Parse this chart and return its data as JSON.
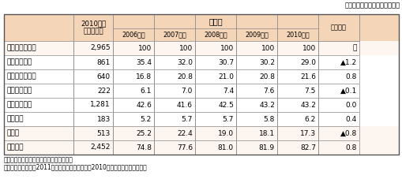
{
  "title_unit": "（単位：社、％、％ポイント）",
  "header1": [
    "",
    "2010年度\n集計企業数",
    "構成比",
    "",
    "",
    "",
    "",
    ""
  ],
  "header2": [
    "",
    "",
    "2006年度",
    "2007年度",
    "2008年度",
    "2009年度",
    "2010年度",
    "前年度差"
  ],
  "rows": [
    [
      "世界計／全産業",
      "2,965",
      "100",
      "100",
      "100",
      "100",
      "100",
      "－"
    ],
    [
      "　米国系企業",
      "861",
      "35.4",
      "32.0",
      "30.7",
      "30.2",
      "29.0",
      "▲1.2"
    ],
    [
      "　アジア系企業",
      "640",
      "16.8",
      "20.8",
      "21.0",
      "20.8",
      "21.6",
      "0.8"
    ],
    [
      "　　うち中国",
      "222",
      "6.1",
      "7.0",
      "7.4",
      "7.6",
      "7.5",
      "▲0.1"
    ],
    [
      "　欧州系企業",
      "1,281",
      "42.6",
      "41.6",
      "42.5",
      "43.2",
      "43.2",
      "0.0"
    ],
    [
      "　その他",
      "183",
      "5.2",
      "5.7",
      "5.7",
      "5.8",
      "6.2",
      "0.4"
    ],
    [
      "製造業",
      "513",
      "25.2",
      "22.4",
      "19.0",
      "18.1",
      "17.3",
      "▲0.8"
    ],
    [
      "非製造業",
      "2,452",
      "74.8",
      "77.6",
      "81.0",
      "81.9",
      "82.7",
      "0.8"
    ]
  ],
  "footnotes": [
    "備考：金融・保険業及び不動産業を除く。",
    "資料：経済産業省「2011年外資系企業動向調査（2010年度実績）」から作成。"
  ],
  "header_bg": "#f5d5b8",
  "row_bg_normal": "#ffffff",
  "row_bg_alt": "#fef9f5",
  "border_color": "#888888",
  "indent_rows": [
    1,
    2,
    3,
    4,
    5
  ],
  "deep_indent_rows": [
    3
  ]
}
